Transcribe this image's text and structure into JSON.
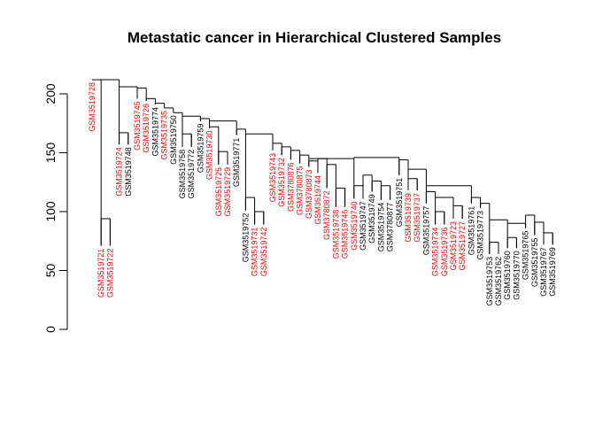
{
  "chart_data": {
    "type": "dendrogram",
    "title": "Metastatic cancer in Hierarchical Clustered Samples",
    "xlabel": "",
    "ylabel": "",
    "ylim": [
      0,
      210
    ],
    "yticks": [
      0,
      50,
      100,
      150,
      200
    ],
    "colors": {
      "metastatic": "#ff0000",
      "other": "#000000",
      "line": "#000000"
    },
    "leaves": [
      {
        "label": "GSM3519728",
        "group": "metastatic",
        "height": 212
      },
      {
        "label": "GSM3519721",
        "group": "metastatic",
        "height": 71
      },
      {
        "label": "GSM3519722",
        "group": "metastatic",
        "height": 71
      },
      {
        "label": "GSM3519724",
        "group": "metastatic",
        "height": 157
      },
      {
        "label": "GSM3519748",
        "group": "other",
        "height": 157
      },
      {
        "label": "GSM3519745",
        "group": "metastatic",
        "height": 196
      },
      {
        "label": "GSM3519726",
        "group": "metastatic",
        "height": 194
      },
      {
        "label": "GSM3519774",
        "group": "other",
        "height": 191
      },
      {
        "label": "GSM3519735",
        "group": "metastatic",
        "height": 188
      },
      {
        "label": "GSM3519750",
        "group": "other",
        "height": 184
      },
      {
        "label": "GSM3519758",
        "group": "other",
        "height": 155
      },
      {
        "label": "GSM3519772",
        "group": "other",
        "height": 155
      },
      {
        "label": "GSM3519759",
        "group": "other",
        "height": 177
      },
      {
        "label": "GSM3519730",
        "group": "metastatic",
        "height": 171
      },
      {
        "label": "GSM3519725",
        "group": "metastatic",
        "height": 140
      },
      {
        "label": "GSM3519729",
        "group": "metastatic",
        "height": 140
      },
      {
        "label": "GSM3519771",
        "group": "other",
        "height": 165
      },
      {
        "label": "GSM3519752",
        "group": "other",
        "height": 101
      },
      {
        "label": "GSM3519731",
        "group": "metastatic",
        "height": 89
      },
      {
        "label": "GSM3519742",
        "group": "metastatic",
        "height": 89
      },
      {
        "label": "GSM3519743",
        "group": "metastatic",
        "height": 152
      },
      {
        "label": "GSM3519732",
        "group": "metastatic",
        "height": 148
      },
      {
        "label": "GSM3780876",
        "group": "metastatic",
        "height": 144
      },
      {
        "label": "GSM3780875",
        "group": "metastatic",
        "height": 141
      },
      {
        "label": "GSM3780873",
        "group": "metastatic",
        "height": 138
      },
      {
        "label": "GSM3519744",
        "group": "metastatic",
        "height": 133
      },
      {
        "label": "GSM3780872",
        "group": "metastatic",
        "height": 120
      },
      {
        "label": "GSM3519738",
        "group": "metastatic",
        "height": 104
      },
      {
        "label": "GSM3519746",
        "group": "metastatic",
        "height": 104
      },
      {
        "label": "GSM3519740",
        "group": "metastatic",
        "height": 111
      },
      {
        "label": "GSM3519747",
        "group": "other",
        "height": 111
      },
      {
        "label": "GSM3519749",
        "group": "other",
        "height": 117
      },
      {
        "label": "GSM3519754",
        "group": "other",
        "height": 110
      },
      {
        "label": "GSM3780877",
        "group": "other",
        "height": 110
      },
      {
        "label": "GSM3519751",
        "group": "other",
        "height": 131
      },
      {
        "label": "GSM3519739",
        "group": "metastatic",
        "height": 118
      },
      {
        "label": "GSM3519737",
        "group": "metastatic",
        "height": 118
      },
      {
        "label": "GSM3519757",
        "group": "other",
        "height": 107
      },
      {
        "label": "GSM3519734",
        "group": "metastatic",
        "height": 89
      },
      {
        "label": "GSM3519736",
        "group": "metastatic",
        "height": 89
      },
      {
        "label": "GSM3519723",
        "group": "metastatic",
        "height": 94
      },
      {
        "label": "GSM3519727",
        "group": "metastatic",
        "height": 94
      },
      {
        "label": "GSM3519761",
        "group": "other",
        "height": 107
      },
      {
        "label": "GSM3519773",
        "group": "other",
        "height": 103
      },
      {
        "label": "GSM3519753",
        "group": "other",
        "height": 64
      },
      {
        "label": "GSM3519762",
        "group": "other",
        "height": 64
      },
      {
        "label": "GSM3519760",
        "group": "other",
        "height": 69
      },
      {
        "label": "GSM3519770",
        "group": "other",
        "height": 69
      },
      {
        "label": "GSM3519765",
        "group": "other",
        "height": 86
      },
      {
        "label": "GSM3519755",
        "group": "other",
        "height": 80
      },
      {
        "label": "GSM3519767",
        "group": "other",
        "height": 72
      },
      {
        "label": "GSM3519769",
        "group": "other",
        "height": 72
      }
    ],
    "merges": [
      {
        "left": 1,
        "right": 2,
        "height": 94
      },
      {
        "left": 3,
        "right": 4,
        "height": 167
      },
      {
        "left": 10,
        "right": 11,
        "height": 166
      },
      {
        "left": 14,
        "right": 15,
        "height": 151
      },
      {
        "left": 18,
        "right": 19,
        "height": 100
      },
      {
        "left": 27,
        "right": 28,
        "height": 120
      },
      {
        "left": 32,
        "right": 33,
        "height": 122
      },
      {
        "left": 35,
        "right": 36,
        "height": 128
      },
      {
        "left": 38,
        "right": 39,
        "height": 100
      },
      {
        "left": 40,
        "right": 41,
        "height": 105
      },
      {
        "left": 44,
        "right": 45,
        "height": 74
      },
      {
        "left": 46,
        "right": 47,
        "height": 78
      },
      {
        "left": 50,
        "right": 51,
        "height": 82
      },
      {
        "left": 49,
        "right": 50,
        "height": 91
      },
      {
        "left": 48,
        "right": 49,
        "height": 97
      },
      {
        "left": 46,
        "right": 48,
        "height": 90
      },
      {
        "left": 44,
        "right": 46,
        "height": 93
      },
      {
        "left": 43,
        "right": 44,
        "height": 107
      },
      {
        "left": 42,
        "right": 43,
        "height": 112
      },
      {
        "left": 38,
        "right": 40,
        "height": 112
      },
      {
        "left": 37,
        "right": 38,
        "height": 117
      },
      {
        "left": 37,
        "right": 42,
        "height": 122
      },
      {
        "left": 35,
        "right": 37,
        "height": 136
      },
      {
        "left": 34,
        "right": 35,
        "height": 144
      },
      {
        "left": 31,
        "right": 32,
        "height": 126
      },
      {
        "left": 30,
        "right": 31,
        "height": 131
      },
      {
        "left": 29,
        "right": 30,
        "height": 122
      },
      {
        "left": 26,
        "right": 27,
        "height": 140
      },
      {
        "left": 25,
        "right": 26,
        "height": 145
      },
      {
        "left": 24,
        "right": 25,
        "height": 143
      },
      {
        "left": 29,
        "right": 34,
        "height": 146
      },
      {
        "left": 24,
        "right": 29,
        "height": 145
      },
      {
        "left": 23,
        "right": 24,
        "height": 148
      },
      {
        "left": 22,
        "right": 23,
        "height": 152
      },
      {
        "left": 21,
        "right": 22,
        "height": 155
      },
      {
        "left": 20,
        "right": 21,
        "height": 158
      },
      {
        "left": 17,
        "right": 18,
        "height": 112
      },
      {
        "left": 17,
        "right": 20,
        "height": 166
      },
      {
        "left": 16,
        "right": 17,
        "height": 170
      },
      {
        "left": 13,
        "right": 14,
        "height": 172
      },
      {
        "left": 13,
        "right": 16,
        "height": 177
      },
      {
        "left": 12,
        "right": 13,
        "height": 179
      },
      {
        "left": 10,
        "right": 12,
        "height": 181
      },
      {
        "left": 9,
        "right": 10,
        "height": 184
      },
      {
        "left": 8,
        "right": 9,
        "height": 188
      },
      {
        "left": 7,
        "right": 8,
        "height": 192
      },
      {
        "left": 6,
        "right": 7,
        "height": 196
      },
      {
        "left": 5,
        "right": 6,
        "height": 205
      },
      {
        "left": 3,
        "right": 5,
        "height": 206
      },
      {
        "left": 1,
        "right": 3,
        "height": 212
      },
      {
        "left": 0,
        "right": 1,
        "height": 212
      }
    ]
  }
}
